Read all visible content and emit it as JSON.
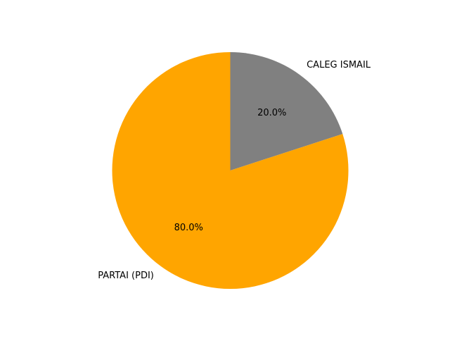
{
  "chart_data": {
    "type": "pie",
    "slices": [
      {
        "label": "CALEG ISMAIL",
        "value": 20.0,
        "pct_label": "20.0%",
        "color": "#808080"
      },
      {
        "label": "PARTAI (PDI)",
        "value": 80.0,
        "pct_label": "80.0%",
        "color": "#ffa500"
      }
    ],
    "start_angle_deg": 90,
    "direction": "clockwise"
  }
}
